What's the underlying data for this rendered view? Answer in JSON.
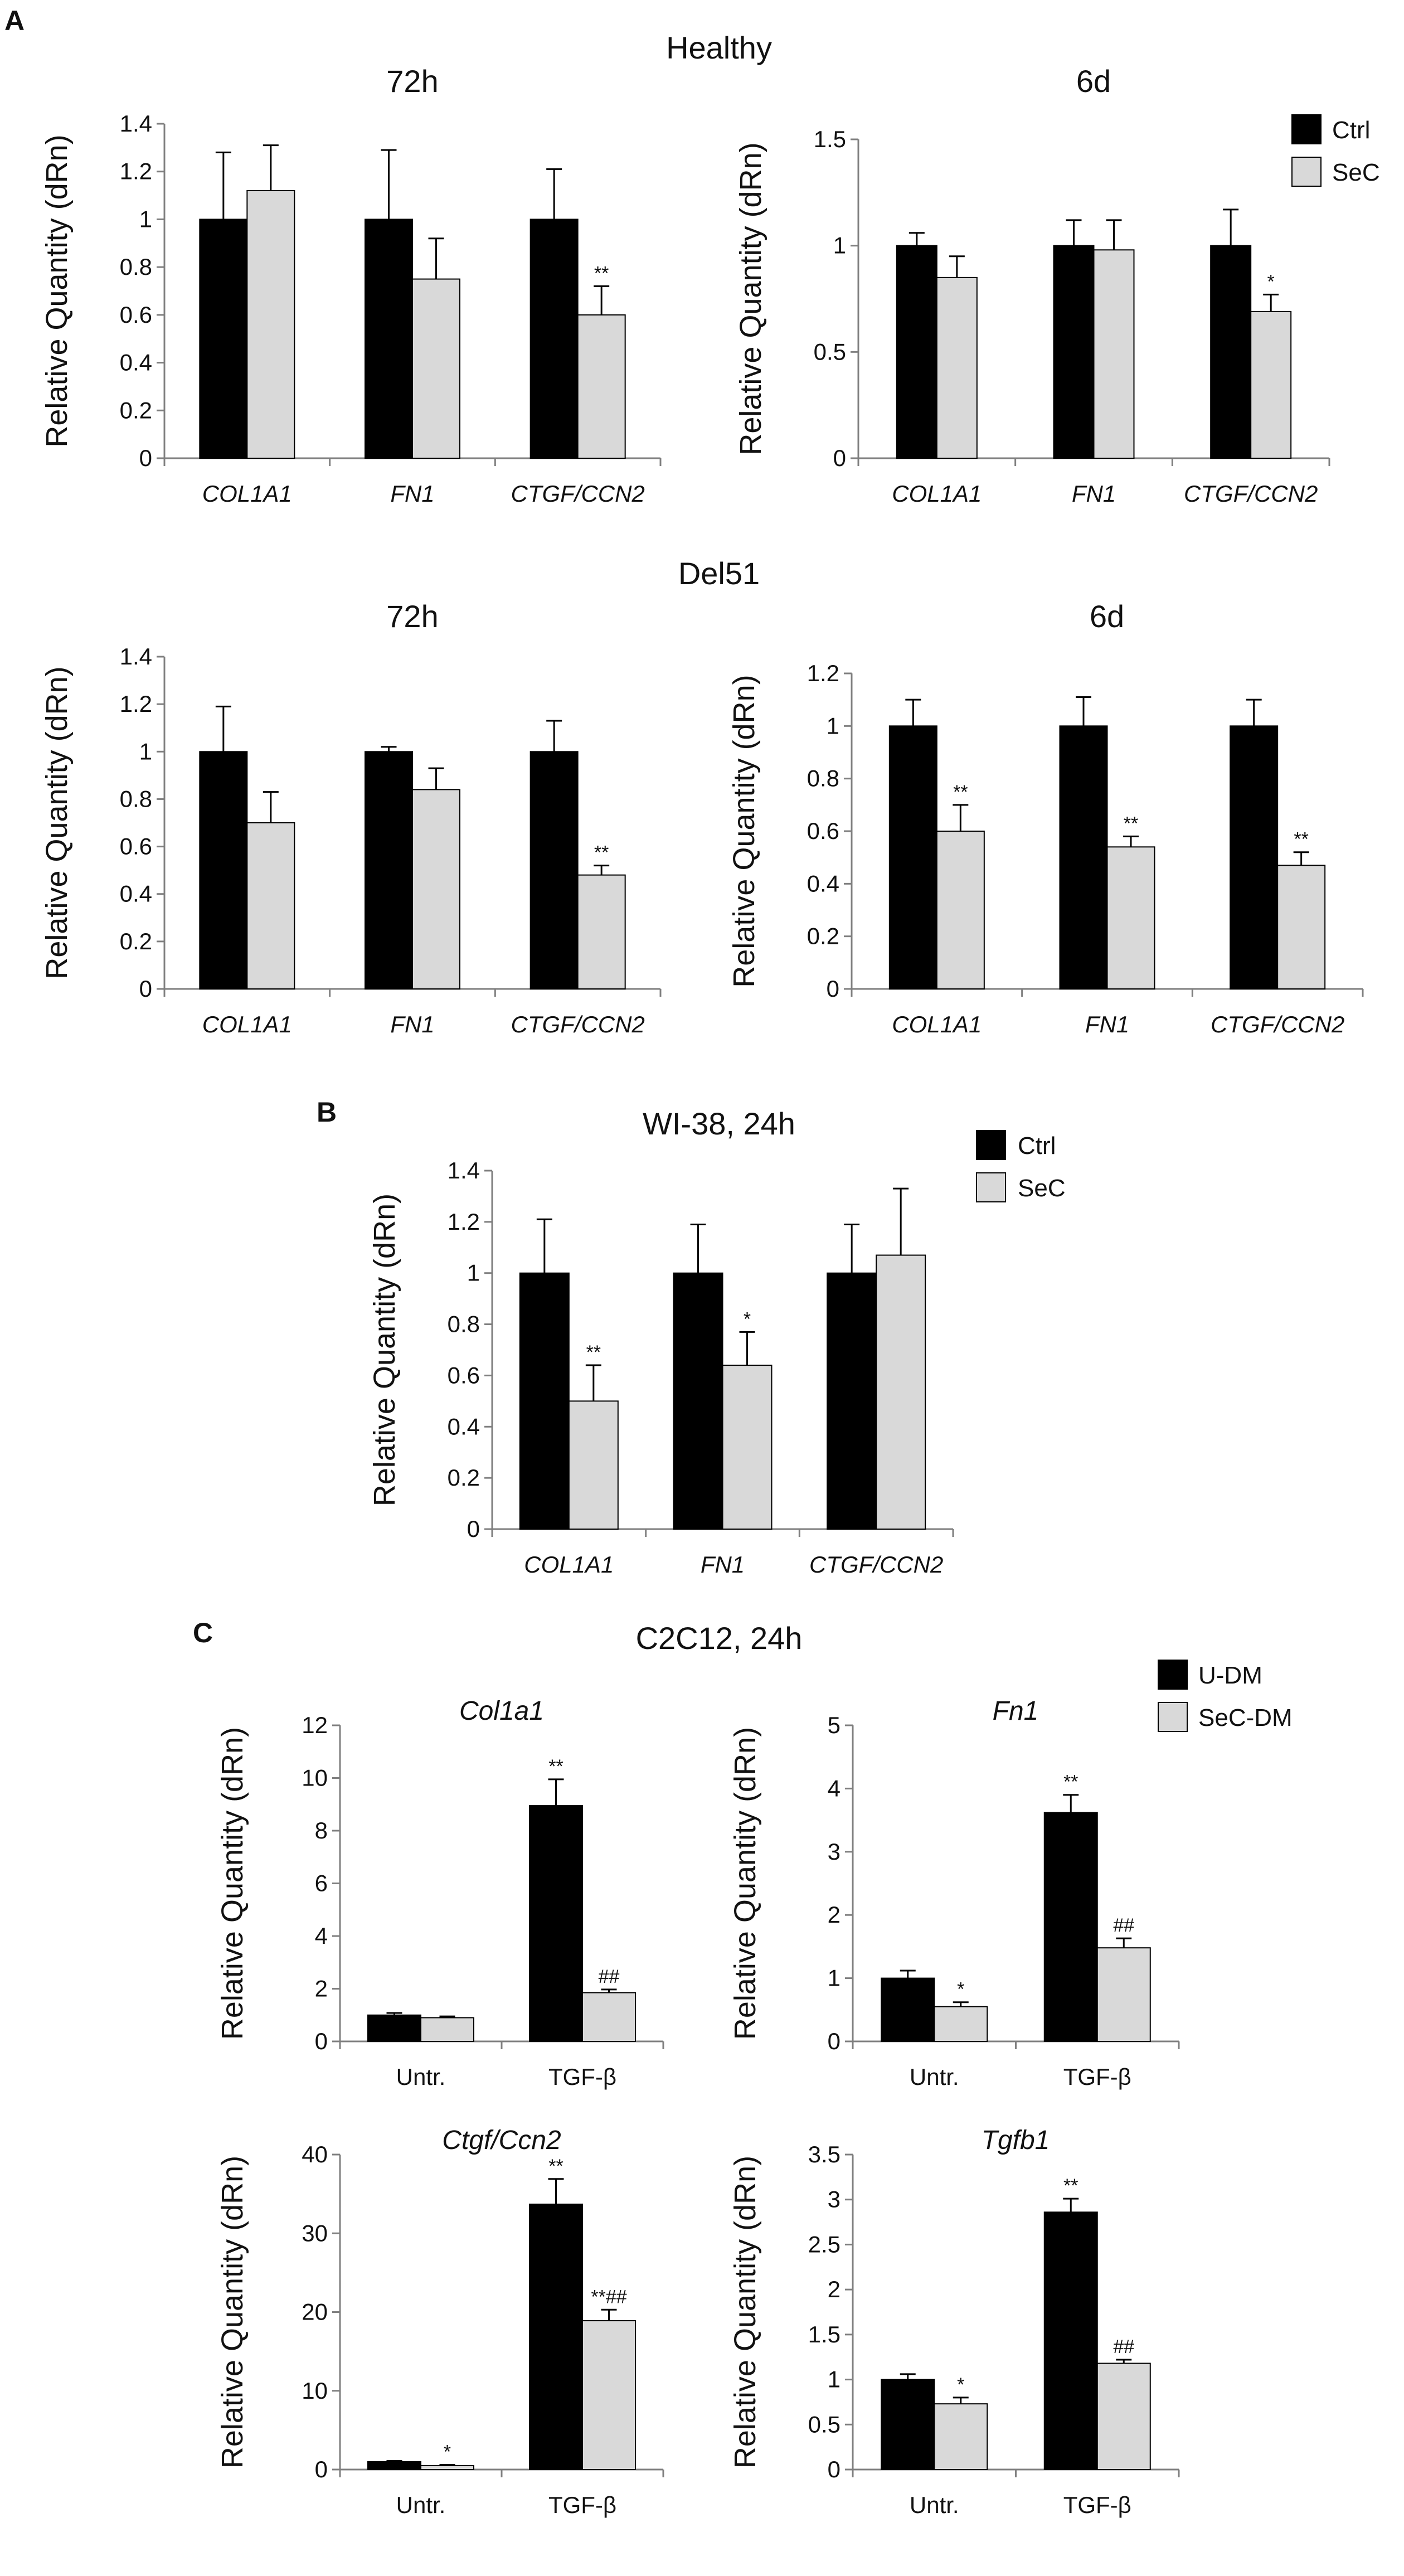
{
  "panels": [
    {
      "letter": "A",
      "subtitles": [
        "Healthy",
        "Del51"
      ]
    },
    {
      "letter": "B"
    },
    {
      "letter": "C",
      "title": "C2C12, 24h"
    }
  ],
  "legends": [
    {
      "entries": [
        {
          "label": "Ctrl",
          "color": "#000000"
        },
        {
          "label": "SeC",
          "color": "#d9d9d9"
        }
      ]
    },
    {
      "entries": [
        {
          "label": "Ctrl",
          "color": "#000000"
        },
        {
          "label": "SeC",
          "color": "#d9d9d9"
        }
      ]
    },
    {
      "entries": [
        {
          "label": "U-DM",
          "color": "#000000"
        },
        {
          "label": "SeC-DM",
          "color": "#d9d9d9"
        }
      ]
    }
  ],
  "chart_data": [
    {
      "type": "bar",
      "panel": "A",
      "group": "Healthy",
      "title": "72h",
      "title_italic": false,
      "ylabel": "Relative Quantity (dRn)",
      "categories": [
        "COL1A1",
        "FN1",
        "CTGF/CCN2"
      ],
      "categories_italic": true,
      "ylim": [
        0,
        1.4
      ],
      "yticks": [
        0,
        0.2,
        0.4,
        0.6,
        0.8,
        1,
        1.2,
        1.4
      ],
      "ytick_labels": [
        "0",
        "0.2",
        "0.4",
        "0.6",
        "0.8",
        "1",
        "1.2",
        "1.4"
      ],
      "series": [
        {
          "name": "Ctrl",
          "color": "#000000",
          "values": [
            1.0,
            1.0,
            1.0
          ],
          "errors": [
            0.28,
            0.29,
            0.21
          ],
          "marks": [
            "",
            "",
            ""
          ]
        },
        {
          "name": "SeC",
          "color": "#d9d9d9",
          "values": [
            1.12,
            0.75,
            0.6
          ],
          "errors": [
            0.19,
            0.17,
            0.12
          ],
          "marks": [
            "",
            "",
            "**"
          ]
        }
      ]
    },
    {
      "type": "bar",
      "panel": "A",
      "group": "Healthy",
      "title": "6d",
      "title_italic": false,
      "ylabel": "Relative Quantity (dRn)",
      "categories": [
        "COL1A1",
        "FN1",
        "CTGF/CCN2"
      ],
      "categories_italic": true,
      "ylim": [
        0,
        1.5
      ],
      "yticks": [
        0,
        0.5,
        1,
        1.5
      ],
      "ytick_labels": [
        "0",
        "0.5",
        "1",
        "1.5"
      ],
      "series": [
        {
          "name": "Ctrl",
          "color": "#000000",
          "values": [
            1.0,
            1.0,
            1.0
          ],
          "errors": [
            0.06,
            0.12,
            0.17
          ],
          "marks": [
            "",
            "",
            ""
          ]
        },
        {
          "name": "SeC",
          "color": "#d9d9d9",
          "values": [
            0.85,
            0.98,
            0.69
          ],
          "errors": [
            0.1,
            0.14,
            0.08
          ],
          "marks": [
            "",
            "",
            "*"
          ]
        }
      ]
    },
    {
      "type": "bar",
      "panel": "A",
      "group": "Del51",
      "title": "72h",
      "title_italic": false,
      "ylabel": "Relative Quantity (dRn)",
      "categories": [
        "COL1A1",
        "FN1",
        "CTGF/CCN2"
      ],
      "categories_italic": true,
      "ylim": [
        0,
        1.4
      ],
      "yticks": [
        0,
        0.2,
        0.4,
        0.6,
        0.8,
        1,
        1.2,
        1.4
      ],
      "ytick_labels": [
        "0",
        "0.2",
        "0.4",
        "0.6",
        "0.8",
        "1",
        "1.2",
        "1.4"
      ],
      "series": [
        {
          "name": "Ctrl",
          "color": "#000000",
          "values": [
            1.0,
            1.0,
            1.0
          ],
          "errors": [
            0.19,
            0.02,
            0.13
          ],
          "marks": [
            "",
            "",
            ""
          ]
        },
        {
          "name": "SeC",
          "color": "#d9d9d9",
          "values": [
            0.7,
            0.84,
            0.48
          ],
          "errors": [
            0.13,
            0.09,
            0.04
          ],
          "marks": [
            "",
            "",
            "**"
          ]
        }
      ]
    },
    {
      "type": "bar",
      "panel": "A",
      "group": "Del51",
      "title": "6d",
      "title_italic": false,
      "ylabel": "Relative Quantity (dRn)",
      "categories": [
        "COL1A1",
        "FN1",
        "CTGF/CCN2"
      ],
      "categories_italic": true,
      "ylim": [
        0,
        1.2
      ],
      "yticks": [
        0,
        0.2,
        0.4,
        0.6,
        0.8,
        1,
        1.2
      ],
      "ytick_labels": [
        "0",
        "0.2",
        "0.4",
        "0.6",
        "0.8",
        "1",
        "1.2"
      ],
      "series": [
        {
          "name": "Ctrl",
          "color": "#000000",
          "values": [
            1.0,
            1.0,
            1.0
          ],
          "errors": [
            0.1,
            0.11,
            0.1
          ],
          "marks": [
            "",
            "",
            ""
          ]
        },
        {
          "name": "SeC",
          "color": "#d9d9d9",
          "values": [
            0.6,
            0.54,
            0.47
          ],
          "errors": [
            0.1,
            0.04,
            0.05
          ],
          "marks": [
            "**",
            "**",
            "**"
          ]
        }
      ]
    },
    {
      "type": "bar",
      "panel": "B",
      "group": "",
      "title": "WI-38, 24h",
      "title_italic": false,
      "ylabel": "Relative Quantity (dRn)",
      "categories": [
        "COL1A1",
        "FN1",
        "CTGF/CCN2"
      ],
      "categories_italic": true,
      "ylim": [
        0,
        1.4
      ],
      "yticks": [
        0,
        0.2,
        0.4,
        0.6,
        0.8,
        1,
        1.2,
        1.4
      ],
      "ytick_labels": [
        "0",
        "0.2",
        "0.4",
        "0.6",
        "0.8",
        "1",
        "1.2",
        "1.4"
      ],
      "series": [
        {
          "name": "Ctrl",
          "color": "#000000",
          "values": [
            1.0,
            1.0,
            1.0
          ],
          "errors": [
            0.21,
            0.19,
            0.19
          ],
          "marks": [
            "",
            "",
            ""
          ]
        },
        {
          "name": "SeC",
          "color": "#d9d9d9",
          "values": [
            0.5,
            0.64,
            1.07
          ],
          "errors": [
            0.14,
            0.13,
            0.26
          ],
          "marks": [
            "**",
            "*",
            ""
          ]
        }
      ]
    },
    {
      "type": "bar",
      "panel": "C",
      "group": "",
      "title": "Col1a1",
      "title_italic": true,
      "ylabel": "Relative Quantity (dRn)",
      "categories": [
        "Untr.",
        "TGF-β"
      ],
      "categories_italic": false,
      "ylim": [
        0,
        12
      ],
      "yticks": [
        0,
        2,
        4,
        6,
        8,
        10,
        12
      ],
      "ytick_labels": [
        "0",
        "2",
        "4",
        "6",
        "8",
        "10",
        "12"
      ],
      "series": [
        {
          "name": "U-DM",
          "color": "#000000",
          "values": [
            1.0,
            8.95
          ],
          "errors": [
            0.08,
            1.0
          ],
          "marks": [
            "",
            "**"
          ]
        },
        {
          "name": "SeC-DM",
          "color": "#d9d9d9",
          "values": [
            0.9,
            1.85
          ],
          "errors": [
            0.05,
            0.12
          ],
          "marks": [
            "",
            "##"
          ]
        }
      ]
    },
    {
      "type": "bar",
      "panel": "C",
      "group": "",
      "title": "Fn1",
      "title_italic": true,
      "ylabel": "Relative Quantity (dRn)",
      "categories": [
        "Untr.",
        "TGF-β"
      ],
      "categories_italic": false,
      "ylim": [
        0,
        5
      ],
      "yticks": [
        0,
        1,
        2,
        3,
        4,
        5
      ],
      "ytick_labels": [
        "0",
        "1",
        "2",
        "3",
        "4",
        "5"
      ],
      "series": [
        {
          "name": "U-DM",
          "color": "#000000",
          "values": [
            1.0,
            3.62
          ],
          "errors": [
            0.12,
            0.28
          ],
          "marks": [
            "",
            "**"
          ]
        },
        {
          "name": "SeC-DM",
          "color": "#d9d9d9",
          "values": [
            0.55,
            1.48
          ],
          "errors": [
            0.07,
            0.15
          ],
          "marks": [
            "*",
            "##"
          ]
        }
      ]
    },
    {
      "type": "bar",
      "panel": "C",
      "group": "",
      "title": "Ctgf/Ccn2",
      "title_italic": true,
      "ylabel": "Relative Quantity (dRn)",
      "categories": [
        "Untr.",
        "TGF-β"
      ],
      "categories_italic": false,
      "ylim": [
        0,
        40
      ],
      "yticks": [
        0,
        10,
        20,
        30,
        40
      ],
      "ytick_labels": [
        "0",
        "10",
        "20",
        "30",
        "40"
      ],
      "series": [
        {
          "name": "U-DM",
          "color": "#000000",
          "values": [
            1.0,
            33.7
          ],
          "errors": [
            0.1,
            3.2
          ],
          "marks": [
            "",
            "**"
          ]
        },
        {
          "name": "SeC-DM",
          "color": "#d9d9d9",
          "values": [
            0.5,
            18.9
          ],
          "errors": [
            0.1,
            1.4
          ],
          "marks": [
            "*",
            "**##"
          ]
        }
      ]
    },
    {
      "type": "bar",
      "panel": "C",
      "group": "",
      "title": "Tgfb1",
      "title_italic": true,
      "ylabel": "Relative Quantity (dRn)",
      "categories": [
        "Untr.",
        "TGF-β"
      ],
      "categories_italic": false,
      "ylim": [
        0,
        3.5
      ],
      "yticks": [
        0,
        0.5,
        1,
        1.5,
        2,
        2.5,
        3,
        3.5
      ],
      "ytick_labels": [
        "0",
        "0.5",
        "1",
        "1.5",
        "2",
        "2.5",
        "3",
        "3.5"
      ],
      "series": [
        {
          "name": "U-DM",
          "color": "#000000",
          "values": [
            1.0,
            2.86
          ],
          "errors": [
            0.06,
            0.15
          ],
          "marks": [
            "",
            "**"
          ]
        },
        {
          "name": "SeC-DM",
          "color": "#d9d9d9",
          "values": [
            0.73,
            1.18
          ],
          "errors": [
            0.07,
            0.04
          ],
          "marks": [
            "*",
            "##"
          ]
        }
      ]
    }
  ]
}
